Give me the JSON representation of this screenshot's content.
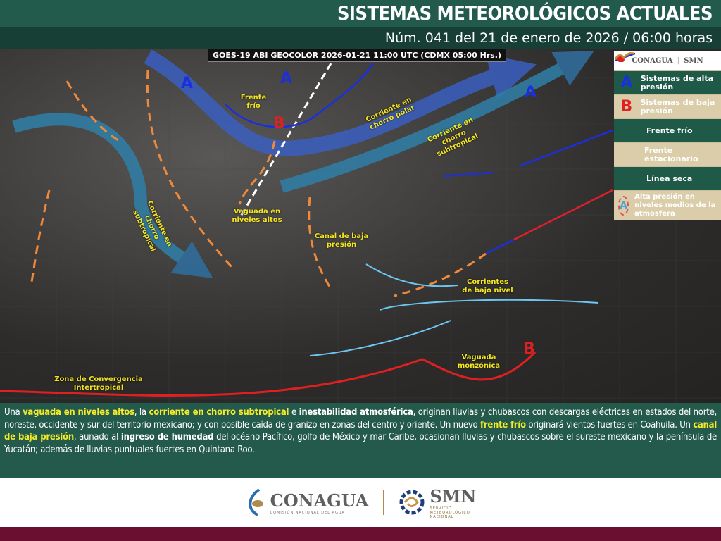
{
  "header": {
    "title": "SISTEMAS METEOROLÓGICOS ACTUALES",
    "subtitle": "Núm. 041 del 21 de enero de 2026 / 06:00 horas"
  },
  "map": {
    "satellite_caption": "GOES-19 ABI GEOCOLOR 2026-01-21 11:00 UTC (CDMX  05:00 Hrs.)",
    "labels": {
      "frente_frio": "Frente frío",
      "chorro_polar": "Corriente en chorro polar",
      "chorro_subtropical": "Corriente en chorro subtropical",
      "chorro_subtropical_w": "Corriente en chorro subtropical",
      "vaguada": "Vaguada en niveles altos",
      "canal": "Canal de baja presión",
      "bajo_nivel": "Corrientes de bajo nivel",
      "monzonica": "Vaguada monzónica",
      "zci": "Zona  de Convergencia Intertropical"
    },
    "high_letter": "A",
    "low_letter": "B"
  },
  "legend": {
    "logo_left": "CONAGUA",
    "logo_right": "SMN",
    "items": [
      {
        "symbol": "A",
        "label": "Sistemas de alta presión",
        "color": "#1a2fe0"
      },
      {
        "symbol": "B",
        "label": "Sistemas de baja presión",
        "color": "#e02020"
      },
      {
        "symbol": "cold-front-icon",
        "label": "Frente frío"
      },
      {
        "symbol": "stationary-front-icon",
        "label": "Frente estacionario"
      },
      {
        "symbol": "dry-line-icon",
        "label": "Línea seca"
      },
      {
        "symbol": "A",
        "label": "Alta presión en niveles medios de la atmosfera",
        "color": "#4aa8d8"
      }
    ]
  },
  "description": {
    "parts": [
      {
        "t": "Una ",
        "s": ""
      },
      {
        "t": "vaguada en niveles altos",
        "s": "y"
      },
      {
        "t": ", la ",
        "s": ""
      },
      {
        "t": "corriente en chorro subtropical",
        "s": "y"
      },
      {
        "t": " e ",
        "s": ""
      },
      {
        "t": "inestabilidad atmosférica",
        "s": "b"
      },
      {
        "t": ", originan lluvias y chubascos con descargas eléctricas en estados del norte, noreste, occidente y sur del territorio mexicano; y con posible caída de granizo en zonas del centro y oriente. Un nuevo ",
        "s": ""
      },
      {
        "t": "frente frío",
        "s": "y"
      },
      {
        "t": " originará vientos fuertes en Coahuila. Un ",
        "s": ""
      },
      {
        "t": "canal de baja presión",
        "s": "y"
      },
      {
        "t": ", aunado al ",
        "s": ""
      },
      {
        "t": "ingreso de humedad",
        "s": "b"
      },
      {
        "t": " del océano Pacífico, golfo de México y mar Caribe, ocasionan lluvias y chubascos sobre el sureste mexicano y la península de Yucatán; además de lluvias puntuales fuertes en Quintana Roo.",
        "s": ""
      }
    ]
  },
  "footer": {
    "conagua": "CONAGUA",
    "conagua_sub": "COMISIÓN NACIONAL DEL AGUA",
    "smn": "SMN",
    "smn_sub": "SERVICIO METEOROLÓGICO NACIONAL"
  },
  "colors": {
    "header": "#225a4c",
    "subheader": "#173f36",
    "text_panel": "#245a4b",
    "highlight": "#f4ea2a",
    "footer_bar": "#6a0f30"
  }
}
